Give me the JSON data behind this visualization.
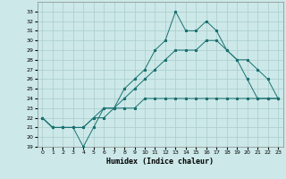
{
  "xlabel": "Humidex (Indice chaleur)",
  "bg_color": "#cce8e8",
  "grid_color": "#aacccc",
  "line_color": "#1a7070",
  "xlim": [
    -0.5,
    23.5
  ],
  "ylim": [
    19,
    34
  ],
  "xticks": [
    0,
    1,
    2,
    3,
    4,
    5,
    6,
    7,
    8,
    9,
    10,
    11,
    12,
    13,
    14,
    15,
    16,
    17,
    18,
    19,
    20,
    21,
    22,
    23
  ],
  "yticks": [
    19,
    20,
    21,
    22,
    23,
    24,
    25,
    26,
    27,
    28,
    29,
    30,
    31,
    32,
    33
  ],
  "series1_x": [
    0,
    1,
    2,
    3,
    4,
    5,
    6,
    7,
    8,
    9,
    10,
    11,
    12,
    13,
    14,
    15,
    16,
    17,
    18,
    19,
    20,
    21,
    22,
    23
  ],
  "series1_y": [
    22,
    21,
    21,
    21,
    19,
    21,
    23,
    23,
    25,
    26,
    27,
    29,
    30,
    33,
    31,
    31,
    32,
    31,
    29,
    28,
    26,
    24,
    24,
    24
  ],
  "series2_x": [
    0,
    1,
    2,
    3,
    4,
    5,
    6,
    7,
    8,
    9,
    10,
    11,
    12,
    13,
    14,
    15,
    16,
    17,
    18,
    19,
    20,
    21,
    22,
    23
  ],
  "series2_y": [
    22,
    21,
    21,
    21,
    21,
    22,
    23,
    23,
    24,
    25,
    26,
    27,
    28,
    29,
    29,
    29,
    30,
    30,
    29,
    28,
    28,
    27,
    26,
    24
  ],
  "series3_x": [
    0,
    1,
    2,
    3,
    4,
    5,
    6,
    7,
    8,
    9,
    10,
    11,
    12,
    13,
    14,
    15,
    16,
    17,
    18,
    19,
    20,
    21,
    22,
    23
  ],
  "series3_y": [
    22,
    21,
    21,
    21,
    21,
    22,
    22,
    23,
    23,
    23,
    24,
    24,
    24,
    24,
    24,
    24,
    24,
    24,
    24,
    24,
    24,
    24,
    24,
    24
  ]
}
